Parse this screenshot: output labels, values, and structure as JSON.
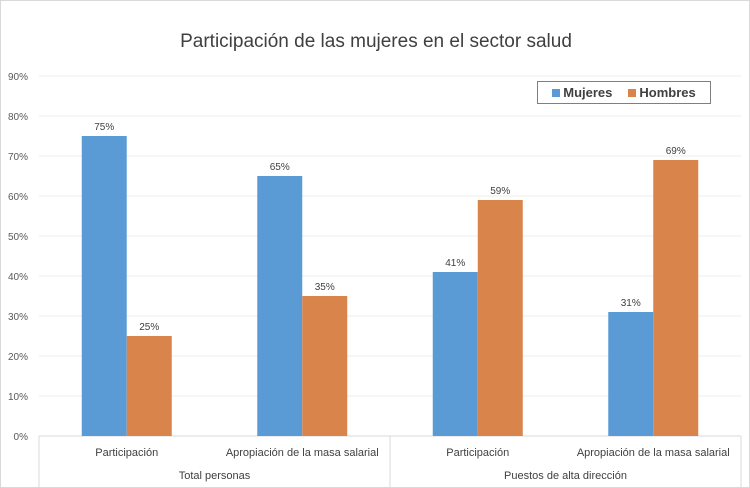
{
  "chart_data": {
    "type": "bar",
    "title": "Participación de las mujeres en el sector salud",
    "groups": [
      {
        "label": "Total personas",
        "categories": [
          "Participación",
          "Apropiación de la masa salarial"
        ]
      },
      {
        "label": "Puestos de alta dirección",
        "categories": [
          "Participación",
          "Apropiación de la masa salarial"
        ]
      }
    ],
    "categories": [
      "Participación",
      "Apropiación de la masa salarial",
      "Participación",
      "Apropiación de la masa salarial"
    ],
    "series": [
      {
        "name": "Mujeres",
        "color": "#5b9bd5",
        "values": [
          75,
          65,
          41,
          31
        ],
        "labels": [
          "75%",
          "65%",
          "41%",
          "31%"
        ]
      },
      {
        "name": "Hombres",
        "color": "#ed7d31",
        "values": [
          25,
          35,
          59,
          69
        ],
        "labels": [
          "25%",
          "35%",
          "59%",
          "69%"
        ]
      }
    ],
    "ylim": [
      0,
      90
    ],
    "yticks": [
      "0%",
      "10%",
      "20%",
      "30%",
      "40%",
      "50%",
      "60%",
      "70%",
      "80%",
      "90%"
    ],
    "grid": true,
    "legend": "top-right"
  }
}
